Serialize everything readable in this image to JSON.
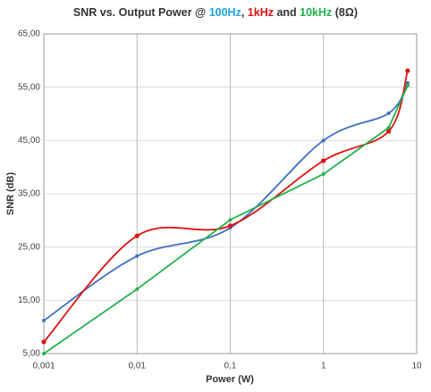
{
  "chart_data": {
    "type": "line",
    "title_parts": [
      {
        "text": "SNR vs. Output Power @ ",
        "color": "#333333"
      },
      {
        "text": "100Hz",
        "color": "#1ea5e0"
      },
      {
        "text": ", ",
        "color": "#333333"
      },
      {
        "text": "1kHz",
        "color": "#e01010"
      },
      {
        "text": " and ",
        "color": "#333333"
      },
      {
        "text": "10kHz",
        "color": "#22b14c"
      },
      {
        "text": " (8Ω)",
        "color": "#333333"
      }
    ],
    "x_label": "Power (W)",
    "y_label": "SNR (dB)",
    "x": [
      0.001,
      0.01,
      0.1,
      1,
      5,
      8
    ],
    "series": [
      {
        "color": "#3f6fbf",
        "smooth": true,
        "values": [
          11.2,
          23.3,
          28.6,
          45,
          50.1,
          55.8
        ]
      },
      {
        "color": "#e01010",
        "smooth": true,
        "values": [
          7.2,
          27.1,
          29,
          41.2,
          46.7,
          58.1
        ]
      },
      {
        "color": "#22b14c",
        "smooth": false,
        "values": [
          5,
          17.1,
          30.1,
          38.7,
          47.4,
          55.3
        ]
      }
    ],
    "xscale": "log",
    "xlim": [
      0.001,
      10
    ],
    "xticks": [
      {
        "value": 0.001,
        "label": "0,001"
      },
      {
        "value": 0.01,
        "label": "0,01"
      },
      {
        "value": 0.1,
        "label": "0,1"
      },
      1,
      10
    ],
    "ylim": [
      5,
      65
    ],
    "yticks": [
      {
        "value": 5,
        "label": "5,00"
      },
      {
        "value": 15,
        "label": "15,00"
      },
      {
        "value": 25,
        "label": "25,00"
      },
      {
        "value": 35,
        "label": "35,00"
      },
      {
        "value": 45,
        "label": "45,00"
      },
      {
        "value": 55,
        "label": "55,00"
      },
      {
        "value": 65,
        "label": "65,00"
      }
    ],
    "grid": true
  }
}
